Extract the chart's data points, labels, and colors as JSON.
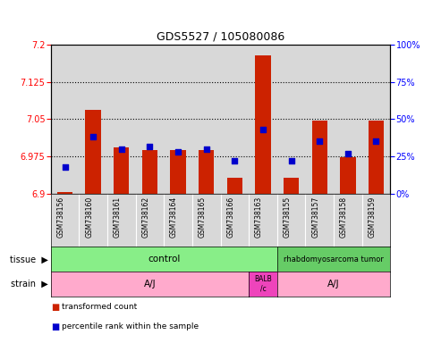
{
  "title": "GDS5527 / 105080086",
  "samples": [
    "GSM738156",
    "GSM738160",
    "GSM738161",
    "GSM738162",
    "GSM738164",
    "GSM738165",
    "GSM738166",
    "GSM738163",
    "GSM738155",
    "GSM738157",
    "GSM738158",
    "GSM738159"
  ],
  "red_values": [
    6.903,
    7.068,
    6.993,
    6.988,
    6.988,
    6.988,
    6.933,
    7.178,
    6.933,
    7.048,
    6.973,
    7.048
  ],
  "blue_pct": [
    18,
    38,
    30,
    32,
    28,
    30,
    22,
    43,
    22,
    35,
    27,
    35
  ],
  "y_min": 6.9,
  "y_max": 7.2,
  "y_ticks": [
    6.9,
    6.975,
    7.05,
    7.125,
    7.2
  ],
  "y2_ticks": [
    0,
    25,
    50,
    75,
    100
  ],
  "bar_color": "#CC2200",
  "dot_color": "#0000CC",
  "axis_bg": "#D8D8D8",
  "chart_bg": "#FFFFFF",
  "dotted_line_y": [
    6.975,
    7.05,
    7.125
  ],
  "base": 6.9,
  "tissue_ctrl_color": "#88EE88",
  "tissue_rhab_color": "#66CC66",
  "strain_aj_color": "#FFAACC",
  "strain_balb_color": "#EE44BB",
  "ctrl_n": 8,
  "rhab_n": 4,
  "aj1_n": 7,
  "balb_n": 1,
  "aj2_n": 4,
  "legend_red_label": "transformed count",
  "legend_blue_label": "percentile rank within the sample",
  "tissue_label": "tissue",
  "strain_label": "strain",
  "tissue_ctrl_text": "control",
  "tissue_rhab_text": "rhabdomyosarcoma tumor",
  "strain_aj_text": "A/J",
  "strain_balb_text": "BALB\n/c",
  "strain_aj2_text": "A/J"
}
